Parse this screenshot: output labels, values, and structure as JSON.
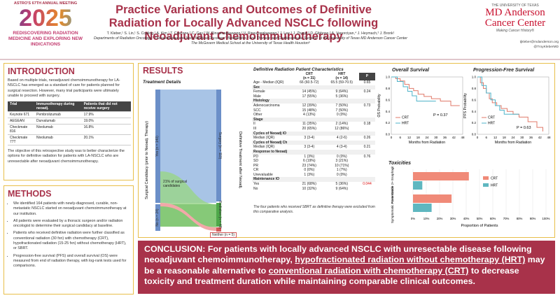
{
  "header": {
    "meeting": "ASTRO'S 67TH ANNUAL MEETING",
    "year": "2025",
    "theme": "REDISCOVERING RADIATION MEDICINE AND EXPLORING NEW INDICATIONS",
    "title": "Practice Variations and Outcomes of Definitive Radiation for Locally Advanced NSCLC following Neoadjuvant Chemoimmunotherapy",
    "authors": "T. Kleber,¹ S. Lin,¹ S. Copling,¹ A. Kim,¹ T. Cascone,² C. Gay,² W. Rinsurongkawong,² V. Rinsurongkawong,² J. Lee,³ J. Zhang,² D. Gibbons,² A. Vaporciyan,⁴ J. Heymach,² J. Bronk¹",
    "affiliations": "Departments of Radiation Oncology,¹ Thoracic/Head and Neck Medical Oncology,² Biostatistics,³ and Thoracic and Cardiovascular Surgery⁴ at the University of Texas MD Anderson Cancer Center",
    "affiliations2": "The McGovern Medical School at the University of Texas Health Houston⁵",
    "org_line1": "THE UNIVERSITY OF TEXAS",
    "org_line2": "MD Anderson",
    "org_line3": "Cancer Center",
    "org_tagline": "Making Cancer History®",
    "email": "tjkleber@mdanderson.org",
    "handle": "@TroyKleberMD"
  },
  "intro": {
    "heading": "INTRODUCTION",
    "p1": "Based on multiple trials, neoadjuvant chemoimmunotherapy for LA-NSCLC has emerged as a standard of care for patients planned for surgical resection. However, many trial participants were ultimately unable to proceed with surgery.",
    "table_headers": [
      "Trial",
      "Immunotherapy during neoadj.",
      "Patients that did not receive surgery"
    ],
    "table_rows": [
      [
        "Keynote 671",
        "Pembrolizumab",
        "17.9%"
      ],
      [
        "AEGEAN",
        "Durvalumab",
        "19.0%"
      ],
      [
        "Checkmate 816",
        "Nivolumab",
        "16.8%"
      ],
      [
        "Checkmate 77T",
        "Nivolumab",
        "20.1%"
      ]
    ],
    "p2": "The objective of this retrospective study was to better characterize the options for definitive radiation for patients with LA-NSCLC who are unresectable after neoadjuvant chemoimmunotherapy."
  },
  "methods": {
    "heading": "METHODS",
    "bullets": [
      "We identified 164 patients with newly-diagnosed, curable, non-metastatic NSCLC started on neoadjuvant chemoimmunotherapy at our institution.",
      "All patients were evaluated by a thoracic surgeon and/or radiation oncologist to determine their surgical candidacy at baseline.",
      "Patients who received definitive radiation were further classified as conventional radiation (30 fxn) with chemotherapy (CRT), hypofractionated radiation (15-25 fxn) without chemotherapy (HRT), or SBRT.",
      "Progression-free survival (PFS) and overall survival (OS) were measured from end of radiation therapy, with log-rank tests used for comparisons."
    ]
  },
  "results": {
    "heading": "RESULTS",
    "sankey_title": "Treatment Details",
    "left_axis": "Surgical Candidacy (prior to Neoadj. Therapy)",
    "right_axis": "Definitive Treatment after Neoadj.",
    "left_yes": "Yes (n = 140)",
    "left_no": "No (n = 24)",
    "right_surgery": "Surgery (n = 110)",
    "right_radiation": "Radiation (n = 49)",
    "right_neither": "Neither (n = 5)",
    "flow_note": "21% of surgical candidates"
  },
  "char_table": {
    "title": "Definitive Radiation Patient Characteristics",
    "col_crt": "CRT",
    "col_crt_n": "(n = 31)",
    "col_hrt": "HRT",
    "col_hrt_n": "(n = 14)",
    "col_p": "P",
    "rows": [
      {
        "g": false,
        "label": "Age - Median (IQR)",
        "crt": "66 (60.5-72)",
        "hrt": "65.5 (59-70.5)",
        "p": "0.65"
      },
      {
        "g": true,
        "label": "Sex",
        "crt": "",
        "hrt": "",
        "p": ""
      },
      {
        "g": false,
        "label": "Female",
        "crt": "14 (45%)",
        "hrt": "9 (64%)",
        "p": "0.24"
      },
      {
        "g": false,
        "label": "Male",
        "crt": "17 (55%)",
        "hrt": "5 (36%)",
        "p": ""
      },
      {
        "g": true,
        "label": "Histology",
        "crt": "",
        "hrt": "",
        "p": ""
      },
      {
        "g": false,
        "label": "Adenocarcinoma",
        "crt": "12 (39%)",
        "hrt": "7 (50%)",
        "p": "0.73"
      },
      {
        "g": false,
        "label": "SCC",
        "crt": "15 (48%)",
        "hrt": "7 (50%)",
        "p": ""
      },
      {
        "g": false,
        "label": "Other",
        "crt": "4 (13%)",
        "hrt": "0 (0%)",
        "p": ""
      },
      {
        "g": true,
        "label": "Stage",
        "crt": "",
        "hrt": "",
        "p": ""
      },
      {
        "g": false,
        "label": "II",
        "crt": "11 (35%)",
        "hrt": "2 (14%)",
        "p": "0.18"
      },
      {
        "g": false,
        "label": "III",
        "crt": "20 (65%)",
        "hrt": "12 (86%)",
        "p": ""
      },
      {
        "g": true,
        "label": "Cycles of Neoadj IO",
        "crt": "",
        "hrt": "",
        "p": ""
      },
      {
        "g": false,
        "label": "Median (IQR)",
        "crt": "3 (3-4)",
        "hrt": "4 (2-6)",
        "p": "0.26"
      },
      {
        "g": true,
        "label": "Cycles of Neoadj Ch",
        "crt": "",
        "hrt": "",
        "p": ""
      },
      {
        "g": false,
        "label": "Median (IQR)",
        "crt": "3 (3-4)",
        "hrt": "4 (3-4)",
        "p": "0.21"
      },
      {
        "g": true,
        "label": "Response to Neoadj",
        "crt": "",
        "hrt": "",
        "p": ""
      },
      {
        "g": false,
        "label": "PD",
        "crt": "1 (3%)",
        "hrt": "0 (0%)",
        "p": "0.76"
      },
      {
        "g": false,
        "label": "SD",
        "crt": "6 (19%)",
        "hrt": "3 (21%)",
        "p": ""
      },
      {
        "g": false,
        "label": "PR",
        "crt": "23 (74%)",
        "hrt": "10 (71%)",
        "p": ""
      },
      {
        "g": false,
        "label": "CR",
        "crt": "0 (0%)",
        "hrt": "1 (7%)",
        "p": ""
      },
      {
        "g": false,
        "label": "Unevaluable",
        "crt": "1 (3%)",
        "hrt": "0 (0%)",
        "p": ""
      },
      {
        "g": true,
        "label": "Maintenance IO",
        "crt": "",
        "hrt": "",
        "p": ""
      },
      {
        "g": false,
        "label": "Yes",
        "crt": "21 (68%)",
        "hrt": "5 (36%)",
        "p": "0.044",
        "red": true
      },
      {
        "g": false,
        "label": "No",
        "crt": "10 (32%)",
        "hrt": "9 (64%)",
        "p": ""
      }
    ],
    "footnote": "The four patients who received SBRT as definitive therapy were excluded from this comparative analysis."
  },
  "os": {
    "title": "Overall Survival",
    "ylabel": "OS Probability",
    "xlabel": "Months from Radiation",
    "p": "P = 0.37",
    "legend_crt": "CRT",
    "legend_hrt": "HRT",
    "yticks": [
      "1.0",
      "0.8",
      "0.6",
      "0.4",
      "0.2",
      "0.0"
    ],
    "xticks": [
      "0",
      "6",
      "12",
      "18",
      "24",
      "30",
      "36",
      "42",
      "48"
    ]
  },
  "pfs": {
    "title": "Progression-Free Survival",
    "ylabel": "PFS Probability",
    "xlabel": "Months from Radiation",
    "p": "P = 0.63",
    "legend_crt": "CRT",
    "legend_hrt": "HRT",
    "yticks": [
      "1.0",
      "0.8",
      "0.6",
      "0.4",
      "0.2",
      "0.0"
    ],
    "xticks": [
      "0",
      "6",
      "12",
      "18",
      "24",
      "30",
      "36",
      "42",
      "48"
    ]
  },
  "toxicities": {
    "title": "Toxicities",
    "cat1": "Acute Grade 2+ Esophagitis",
    "cat2": "Symptomatic Pneumonitis",
    "xlabel": "Proportion of Patients",
    "legend_crt": "CRT",
    "legend_hrt": "HRT",
    "xticks": [
      "0%",
      "10%",
      "20%",
      "30%",
      "40%",
      "50%",
      "60%",
      "70%",
      "80%",
      "90%",
      "100%"
    ],
    "values": {
      "cat1_crt": 0.42,
      "cat1_hrt": 0.07,
      "cat2_crt": 0.29,
      "cat2_hrt": 0.14
    },
    "colors": {
      "crt": "#f08a78",
      "hrt": "#5fb7c0"
    }
  },
  "conclusion": {
    "a": "CONCLUSION: For patients with locally advanced NSCLC with unresectable disease following neoadjuvant chemoimmunotherapy, ",
    "u1": "hypofractionated radiation without chemotherapy (HRT)",
    "b": " may be a reasonable alternative to ",
    "u2": "conventional radiation with chemotherapy (CRT)",
    "c": " to decrease toxicity and treatment duration while maintaining comparable clinical outcomes."
  }
}
